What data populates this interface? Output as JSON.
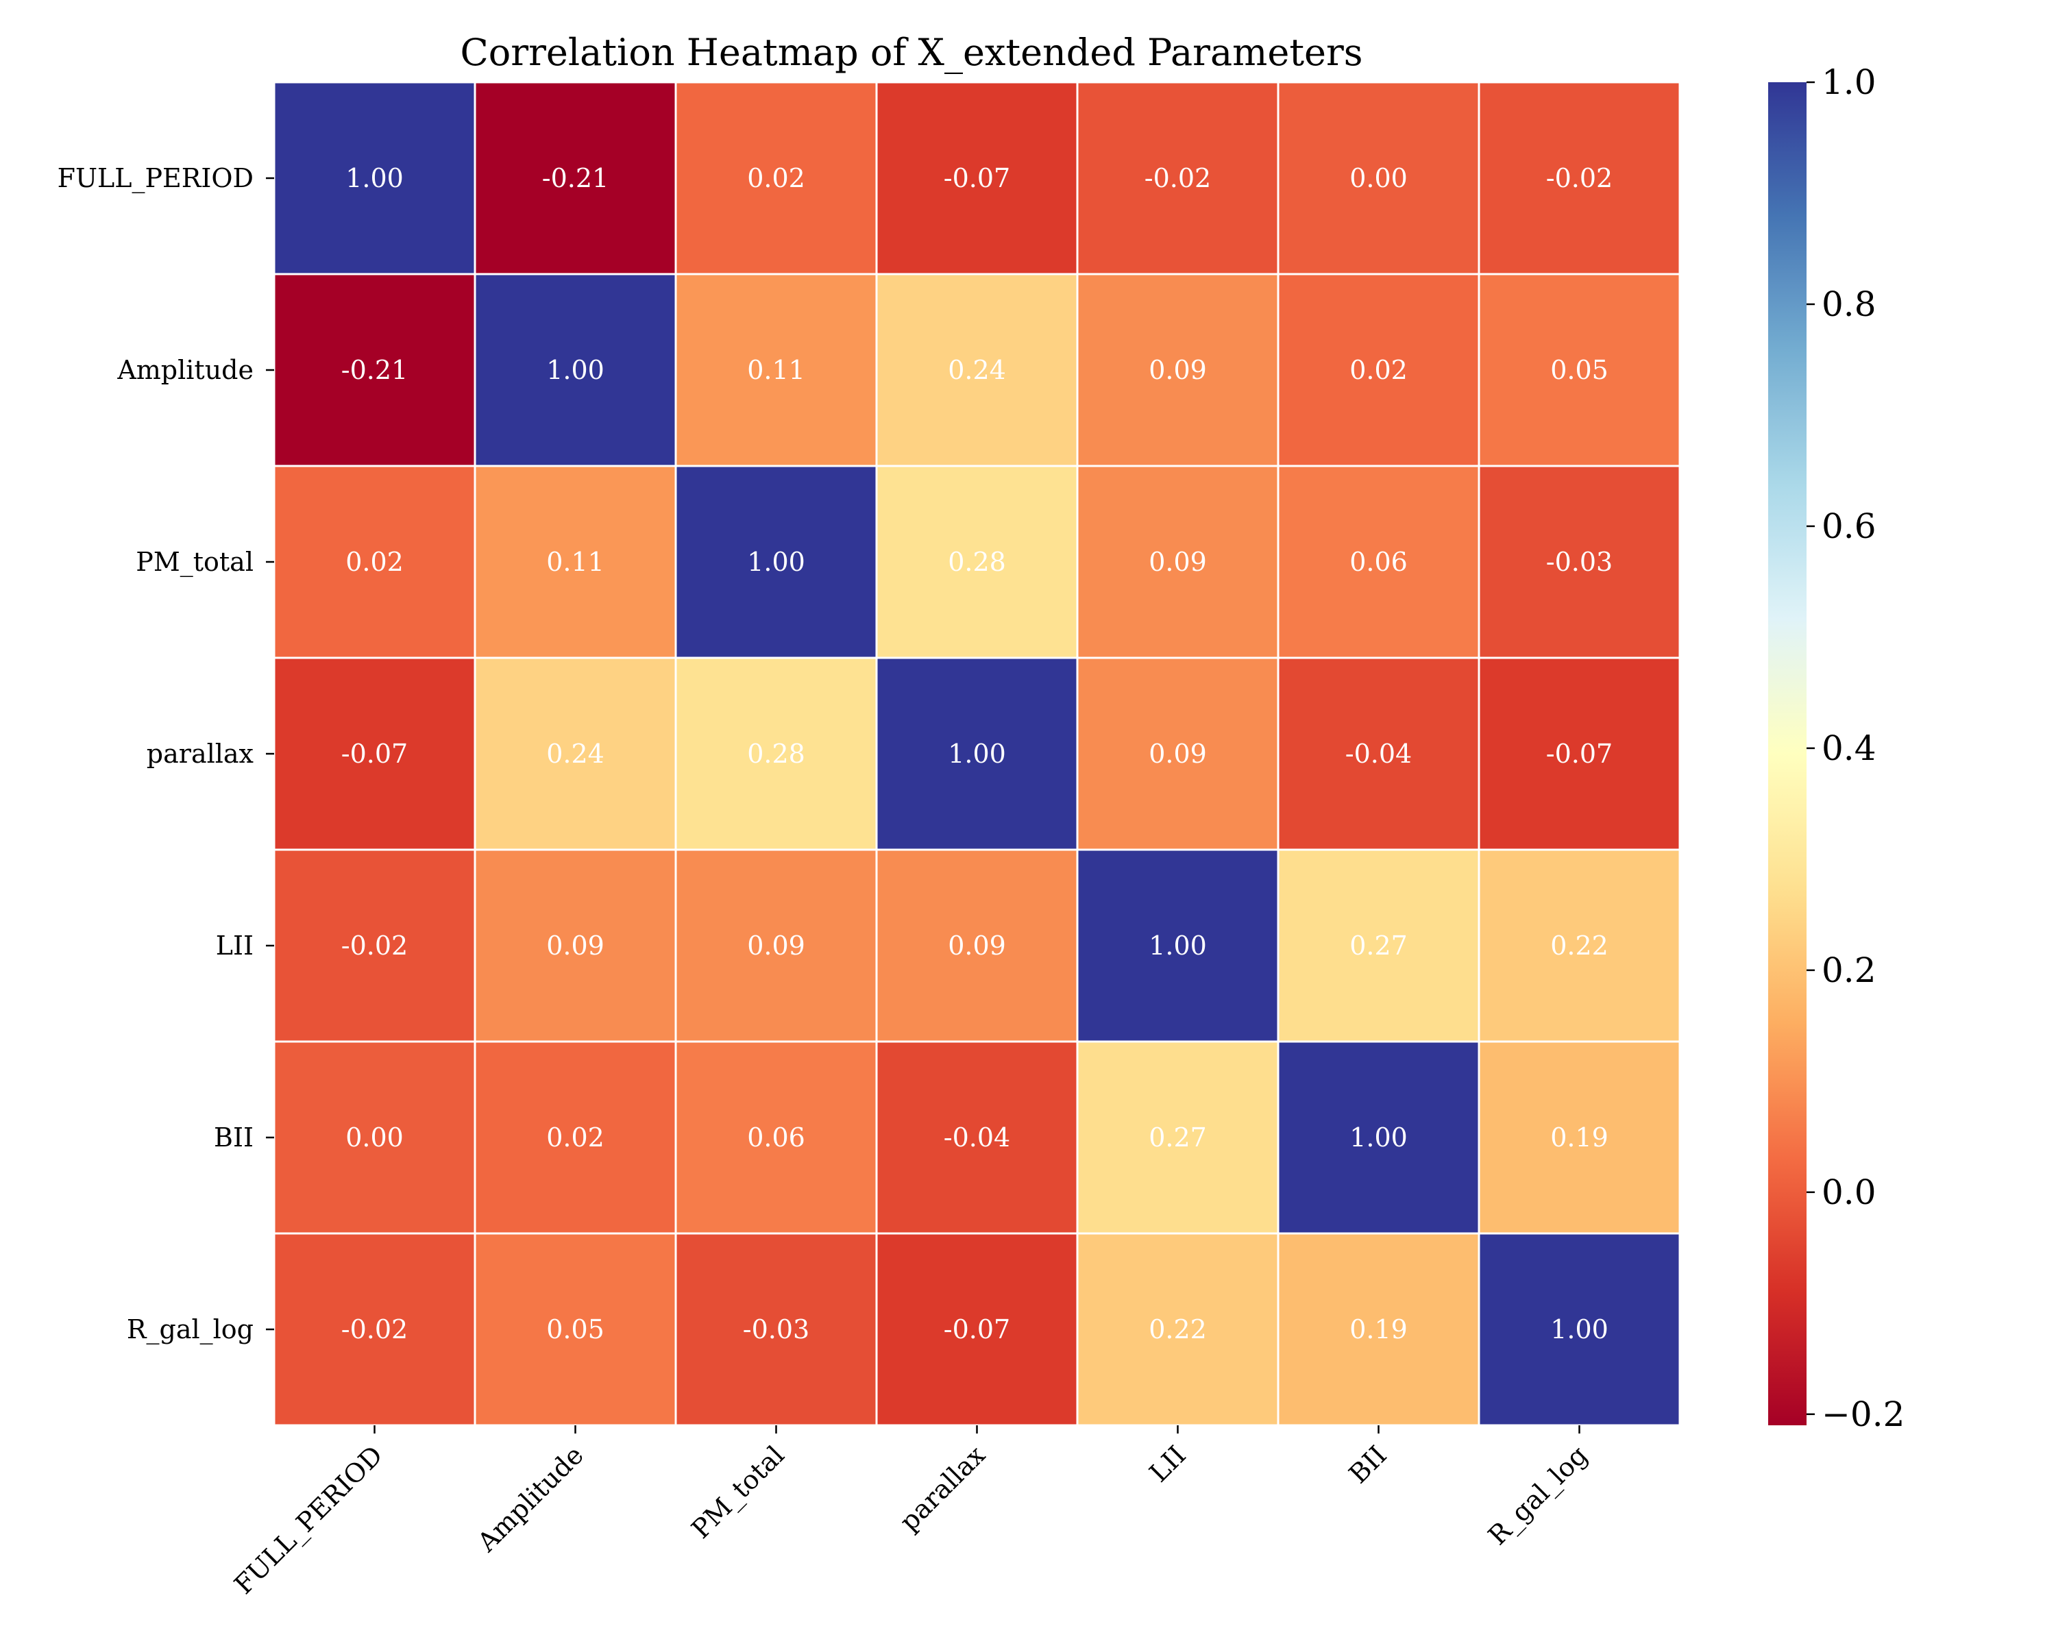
{
  "chart_data": {
    "type": "heatmap",
    "title": "Correlation Heatmap of X_extended Parameters",
    "xlabel": "",
    "ylabel": "",
    "rows": [
      "FULL_PERIOD",
      "Amplitude",
      "PM_total",
      "parallax",
      "LII",
      "BII",
      "R_gal_log"
    ],
    "columns": [
      "FULL_PERIOD",
      "Amplitude",
      "PM_total",
      "parallax",
      "LII",
      "BII",
      "R_gal_log"
    ],
    "values": [
      [
        1.0,
        -0.21,
        0.02,
        -0.07,
        -0.02,
        0.0,
        -0.02
      ],
      [
        -0.21,
        1.0,
        0.11,
        0.24,
        0.09,
        0.02,
        0.05
      ],
      [
        0.02,
        0.11,
        1.0,
        0.28,
        0.09,
        0.06,
        -0.03
      ],
      [
        -0.07,
        0.24,
        0.28,
        1.0,
        0.09,
        -0.04,
        -0.07
      ],
      [
        -0.02,
        0.09,
        0.09,
        0.09,
        1.0,
        0.27,
        0.22
      ],
      [
        0.0,
        0.02,
        0.06,
        -0.04,
        0.27,
        1.0,
        0.19
      ],
      [
        -0.02,
        0.05,
        -0.03,
        -0.07,
        0.22,
        0.19,
        1.0
      ]
    ],
    "value_labels": [
      [
        "1.00",
        "-0.21",
        "0.02",
        "-0.07",
        "-0.02",
        "0.00",
        "-0.02"
      ],
      [
        "-0.21",
        "1.00",
        "0.11",
        "0.24",
        "0.09",
        "0.02",
        "0.05"
      ],
      [
        "0.02",
        "0.11",
        "1.00",
        "0.28",
        "0.09",
        "0.06",
        "-0.03"
      ],
      [
        "-0.07",
        "0.24",
        "0.28",
        "1.00",
        "0.09",
        "-0.04",
        "-0.07"
      ],
      [
        "-0.02",
        "0.09",
        "0.09",
        "0.09",
        "1.00",
        "0.27",
        "0.22"
      ],
      [
        "0.00",
        "0.02",
        "0.06",
        "-0.04",
        "0.27",
        "1.00",
        "0.19"
      ],
      [
        "-0.02",
        "0.05",
        "-0.03",
        "-0.07",
        "0.22",
        "0.19",
        "1.00"
      ]
    ],
    "colorbar": {
      "range": [
        -0.21,
        1.0
      ],
      "colormap": "RdYlBu",
      "ticks": [
        -0.2,
        0.0,
        0.2,
        0.4,
        0.6,
        0.8,
        1.0
      ],
      "tick_labels": [
        "−0.2",
        "0.0",
        "0.2",
        "0.4",
        "0.6",
        "0.8",
        "1.0"
      ]
    },
    "annotation_color": "#ffffff",
    "cell_border_color": "#ffffff",
    "grid": false,
    "legend": "colorbar-right"
  }
}
